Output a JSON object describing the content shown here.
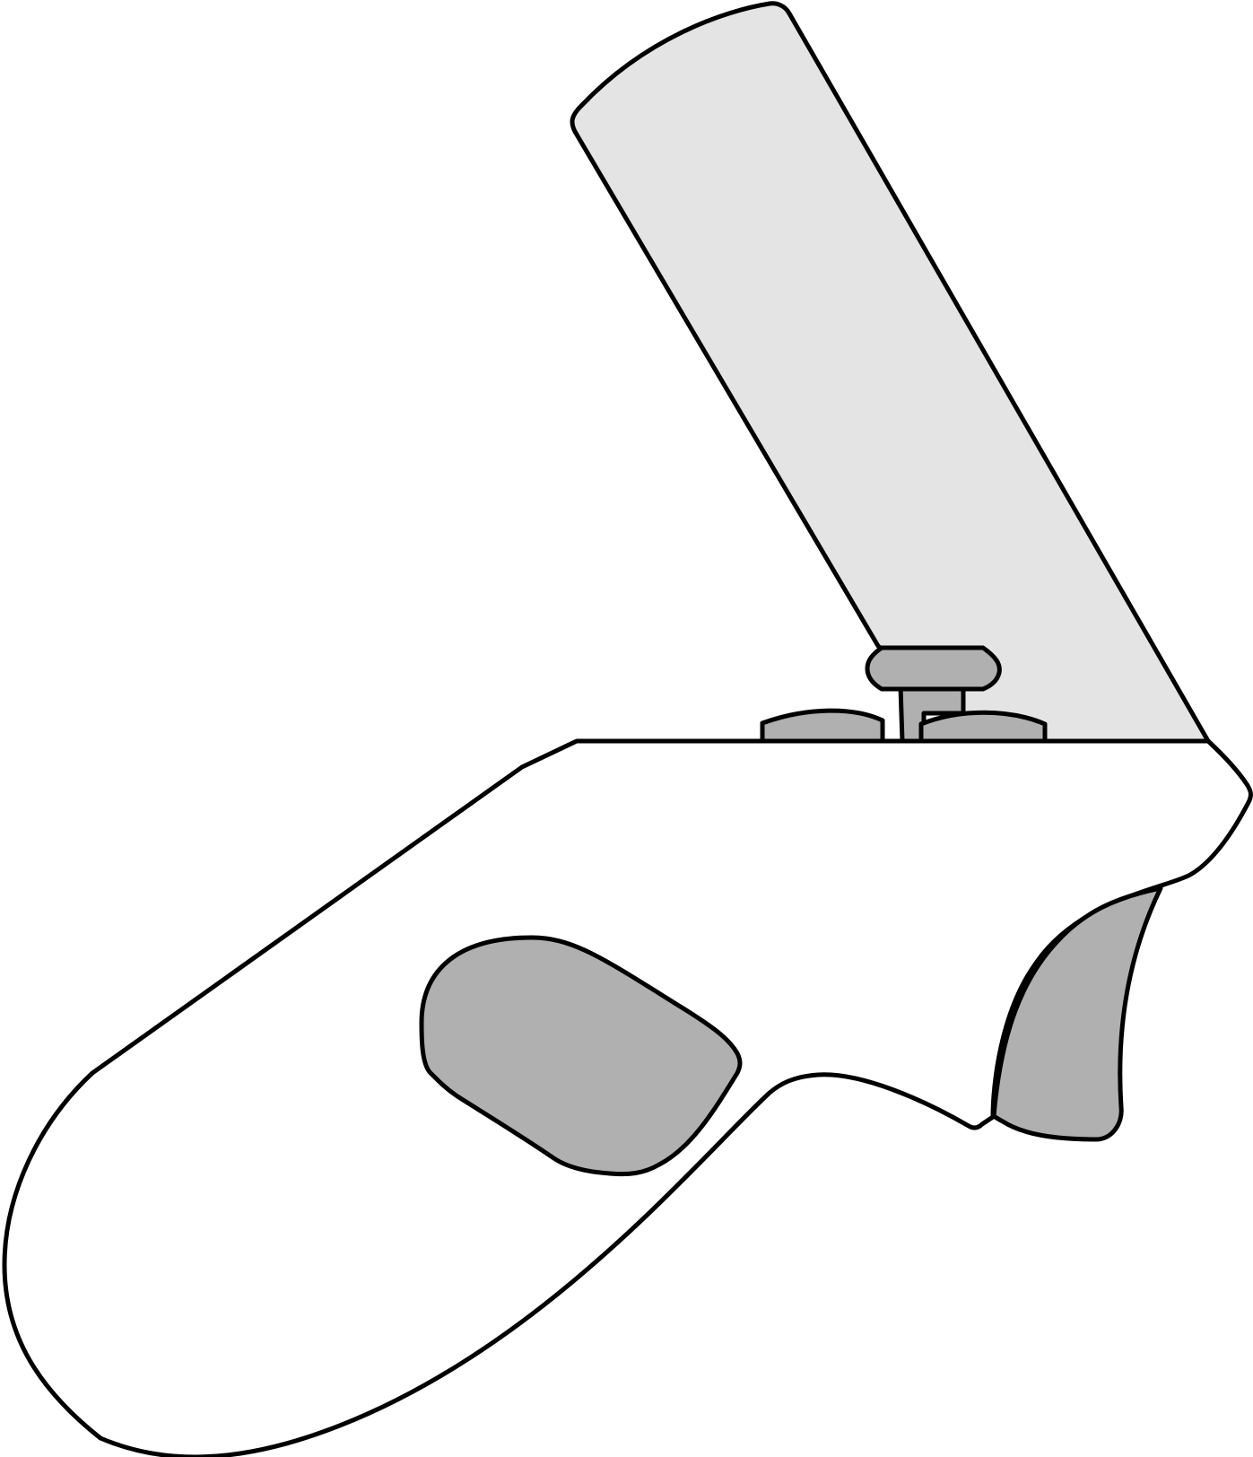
{
  "illustration": {
    "subject": "vr-controller-side-view",
    "background_color": "#ffffff",
    "colors": {
      "outline": "#000000",
      "body_fill": "#ffffff",
      "tracking_ring_fill": "#e4e4e4",
      "control_fill": "#b0b0b0"
    },
    "parts": [
      "controller-body",
      "tracking-ring",
      "thumbstick",
      "face-button-left",
      "face-button-right",
      "grip-button",
      "trigger"
    ]
  }
}
